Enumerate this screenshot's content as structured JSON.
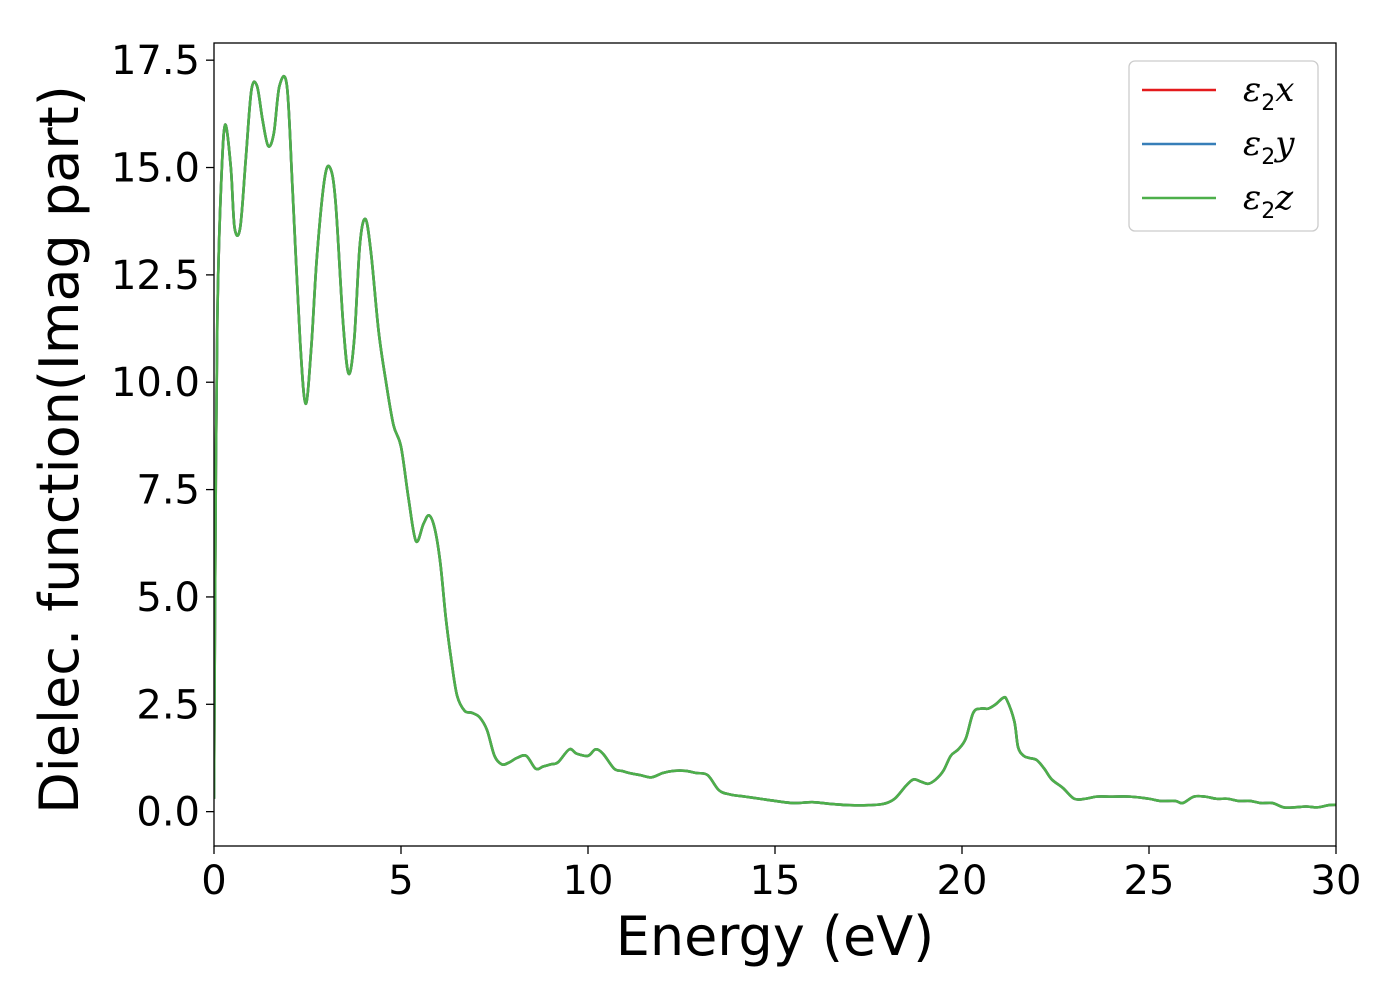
{
  "chart_data": {
    "type": "line",
    "title": "",
    "xlabel": "Energy (eV)",
    "ylabel": "Dielec. function(Imag part)",
    "xlim": [
      0,
      30
    ],
    "ylim": [
      -0.8,
      17.9
    ],
    "xticks": [
      0,
      5,
      10,
      15,
      20,
      25,
      30
    ],
    "xtick_labels": [
      "0",
      "5",
      "10",
      "15",
      "20",
      "25",
      "30"
    ],
    "yticks": [
      0.0,
      2.5,
      5.0,
      7.5,
      10.0,
      12.5,
      15.0,
      17.5
    ],
    "ytick_labels": [
      "0.0",
      "2.5",
      "5.0",
      "7.5",
      "10.0",
      "12.5",
      "15.0",
      "17.5"
    ],
    "grid": false,
    "legend_position": "top-right",
    "x": [
      0.0,
      0.05,
      0.1,
      0.2,
      0.3,
      0.45,
      0.55,
      0.7,
      0.85,
      1.0,
      1.15,
      1.3,
      1.45,
      1.6,
      1.75,
      1.95,
      2.1,
      2.3,
      2.45,
      2.6,
      2.75,
      2.95,
      3.1,
      3.25,
      3.45,
      3.6,
      3.75,
      3.9,
      4.05,
      4.2,
      4.4,
      4.6,
      4.8,
      5.0,
      5.2,
      5.4,
      5.6,
      5.75,
      5.9,
      6.05,
      6.2,
      6.35,
      6.5,
      6.7,
      6.9,
      7.1,
      7.3,
      7.5,
      7.7,
      7.9,
      8.1,
      8.35,
      8.6,
      8.8,
      9.0,
      9.2,
      9.5,
      9.7,
      10.0,
      10.2,
      10.4,
      10.7,
      10.9,
      11.1,
      11.4,
      11.7,
      12.0,
      12.3,
      12.6,
      12.9,
      13.2,
      13.5,
      13.8,
      14.2,
      14.6,
      15.0,
      15.5,
      16.0,
      16.5,
      17.0,
      17.5,
      17.9,
      18.2,
      18.5,
      18.7,
      18.9,
      19.1,
      19.3,
      19.5,
      19.7,
      19.9,
      20.1,
      20.3,
      20.5,
      20.7,
      20.9,
      21.1,
      21.2,
      21.4,
      21.5,
      21.65,
      21.8,
      22.0,
      22.2,
      22.4,
      22.7,
      23.0,
      23.3,
      23.6,
      24.0,
      24.5,
      25.0,
      25.3,
      25.7,
      25.9,
      26.2,
      26.5,
      26.8,
      27.1,
      27.4,
      27.7,
      28.0,
      28.3,
      28.6,
      28.9,
      29.2,
      29.5,
      29.8,
      30.0
    ],
    "series": [
      {
        "name": "ε2x",
        "color": "#e41a1c",
        "values": [
          0.3,
          8.0,
          12.0,
          14.8,
          16.0,
          15.0,
          13.6,
          13.6,
          15.2,
          16.8,
          16.9,
          16.1,
          15.5,
          15.8,
          16.9,
          16.9,
          14.5,
          11.0,
          9.5,
          10.8,
          12.9,
          14.7,
          15.0,
          14.2,
          11.4,
          10.2,
          11.0,
          13.2,
          13.8,
          13.0,
          11.2,
          10.0,
          9.0,
          8.5,
          7.3,
          6.3,
          6.7,
          6.9,
          6.6,
          5.8,
          4.5,
          3.5,
          2.7,
          2.35,
          2.3,
          2.2,
          1.9,
          1.3,
          1.1,
          1.15,
          1.25,
          1.3,
          1.0,
          1.05,
          1.1,
          1.15,
          1.45,
          1.35,
          1.3,
          1.45,
          1.35,
          1.0,
          0.95,
          0.9,
          0.85,
          0.8,
          0.9,
          0.95,
          0.95,
          0.9,
          0.85,
          0.5,
          0.4,
          0.35,
          0.3,
          0.25,
          0.2,
          0.22,
          0.18,
          0.15,
          0.15,
          0.18,
          0.3,
          0.6,
          0.75,
          0.7,
          0.65,
          0.75,
          0.95,
          1.3,
          1.45,
          1.7,
          2.3,
          2.4,
          2.4,
          2.5,
          2.65,
          2.6,
          2.1,
          1.5,
          1.3,
          1.25,
          1.2,
          1.0,
          0.75,
          0.55,
          0.3,
          0.3,
          0.35,
          0.35,
          0.35,
          0.3,
          0.25,
          0.25,
          0.2,
          0.35,
          0.35,
          0.3,
          0.3,
          0.25,
          0.25,
          0.2,
          0.2,
          0.1,
          0.1,
          0.12,
          0.1,
          0.15,
          0.16
        ]
      },
      {
        "name": "ε2y",
        "color": "#377eb8",
        "values": [
          0.3,
          8.0,
          12.0,
          14.8,
          16.0,
          15.0,
          13.6,
          13.6,
          15.2,
          16.8,
          16.9,
          16.1,
          15.5,
          15.8,
          16.9,
          16.9,
          14.5,
          11.0,
          9.5,
          10.8,
          12.9,
          14.7,
          15.0,
          14.2,
          11.4,
          10.2,
          11.0,
          13.2,
          13.8,
          13.0,
          11.2,
          10.0,
          9.0,
          8.5,
          7.3,
          6.3,
          6.7,
          6.9,
          6.6,
          5.8,
          4.5,
          3.5,
          2.7,
          2.35,
          2.3,
          2.2,
          1.9,
          1.3,
          1.1,
          1.15,
          1.25,
          1.3,
          1.0,
          1.05,
          1.1,
          1.15,
          1.45,
          1.35,
          1.3,
          1.45,
          1.35,
          1.0,
          0.95,
          0.9,
          0.85,
          0.8,
          0.9,
          0.95,
          0.95,
          0.9,
          0.85,
          0.5,
          0.4,
          0.35,
          0.3,
          0.25,
          0.2,
          0.22,
          0.18,
          0.15,
          0.15,
          0.18,
          0.3,
          0.6,
          0.75,
          0.7,
          0.65,
          0.75,
          0.95,
          1.3,
          1.45,
          1.7,
          2.3,
          2.4,
          2.4,
          2.5,
          2.65,
          2.6,
          2.1,
          1.5,
          1.3,
          1.25,
          1.2,
          1.0,
          0.75,
          0.55,
          0.3,
          0.3,
          0.35,
          0.35,
          0.35,
          0.3,
          0.25,
          0.25,
          0.2,
          0.35,
          0.35,
          0.3,
          0.3,
          0.25,
          0.25,
          0.2,
          0.2,
          0.1,
          0.1,
          0.12,
          0.1,
          0.15,
          0.16
        ]
      },
      {
        "name": "ε2z",
        "color": "#4daf4a",
        "values": [
          0.3,
          8.0,
          12.0,
          14.8,
          16.0,
          15.0,
          13.6,
          13.6,
          15.2,
          16.8,
          16.9,
          16.1,
          15.5,
          15.8,
          16.9,
          16.9,
          14.5,
          11.0,
          9.5,
          10.8,
          12.9,
          14.7,
          15.0,
          14.2,
          11.4,
          10.2,
          11.0,
          13.2,
          13.8,
          13.0,
          11.2,
          10.0,
          9.0,
          8.5,
          7.3,
          6.3,
          6.7,
          6.9,
          6.6,
          5.8,
          4.5,
          3.5,
          2.7,
          2.35,
          2.3,
          2.2,
          1.9,
          1.3,
          1.1,
          1.15,
          1.25,
          1.3,
          1.0,
          1.05,
          1.1,
          1.15,
          1.45,
          1.35,
          1.3,
          1.45,
          1.35,
          1.0,
          0.95,
          0.9,
          0.85,
          0.8,
          0.9,
          0.95,
          0.95,
          0.9,
          0.85,
          0.5,
          0.4,
          0.35,
          0.3,
          0.25,
          0.2,
          0.22,
          0.18,
          0.15,
          0.15,
          0.18,
          0.3,
          0.6,
          0.75,
          0.7,
          0.65,
          0.75,
          0.95,
          1.3,
          1.45,
          1.7,
          2.3,
          2.4,
          2.4,
          2.5,
          2.65,
          2.6,
          2.1,
          1.5,
          1.3,
          1.25,
          1.2,
          1.0,
          0.75,
          0.55,
          0.3,
          0.3,
          0.35,
          0.35,
          0.35,
          0.3,
          0.25,
          0.25,
          0.2,
          0.35,
          0.35,
          0.3,
          0.3,
          0.25,
          0.25,
          0.2,
          0.2,
          0.1,
          0.1,
          0.12,
          0.1,
          0.15,
          0.16
        ]
      }
    ],
    "legend": [
      {
        "base": "ε",
        "sub": "2",
        "suffix": "x"
      },
      {
        "base": "ε",
        "sub": "2",
        "suffix": "y"
      },
      {
        "base": "ε",
        "sub": "2",
        "suffix": "z"
      }
    ]
  }
}
